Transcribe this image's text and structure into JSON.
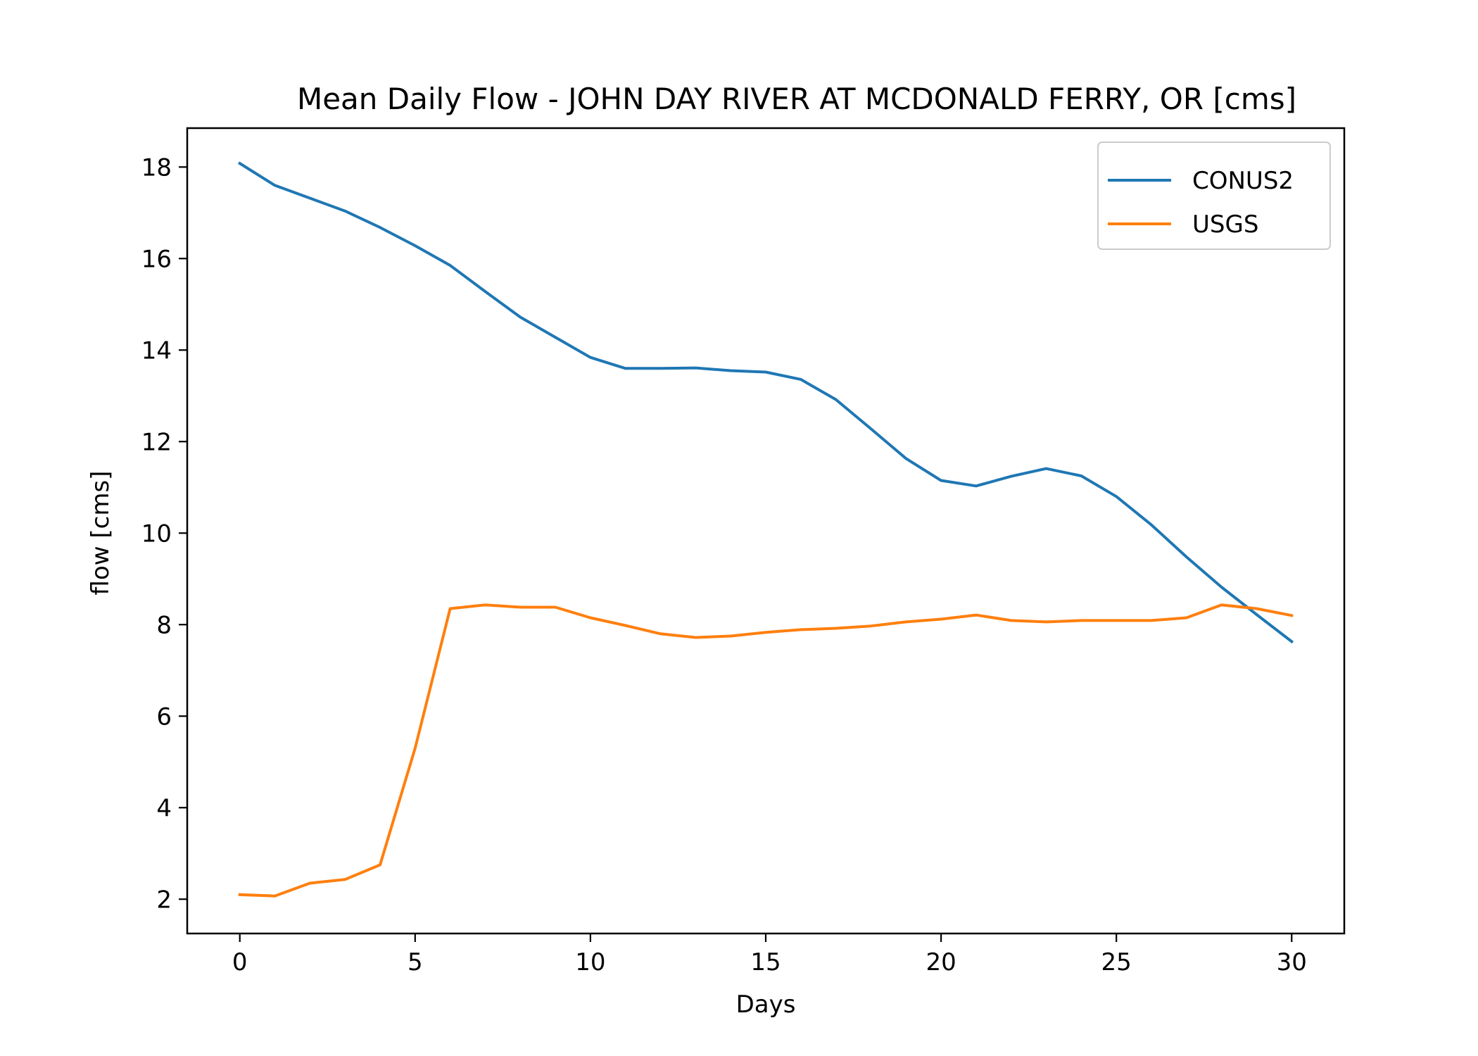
{
  "chart_data": {
    "type": "line",
    "title": "Mean Daily Flow - JOHN DAY RIVER AT MCDONALD FERRY, OR [cms]",
    "xlabel": "Days",
    "ylabel": "flow [cms]",
    "xlim": [
      -1.5,
      31.5
    ],
    "ylim": [
      1.25,
      18.85
    ],
    "xticks": [
      0,
      5,
      10,
      15,
      20,
      25,
      30
    ],
    "yticks": [
      2,
      4,
      6,
      8,
      10,
      12,
      14,
      16,
      18
    ],
    "grid": false,
    "legend_position": "top-right",
    "x": [
      0,
      1,
      2,
      3,
      4,
      5,
      6,
      7,
      8,
      9,
      10,
      11,
      12,
      13,
      14,
      15,
      16,
      17,
      18,
      19,
      20,
      21,
      22,
      23,
      24,
      25,
      26,
      27,
      28,
      29,
      30
    ],
    "series": [
      {
        "name": "CONUS2",
        "color": "#1f77b4",
        "values": [
          18.08,
          17.6,
          17.32,
          17.04,
          16.68,
          16.28,
          15.85,
          15.28,
          14.72,
          14.28,
          13.84,
          13.6,
          13.6,
          13.61,
          13.55,
          13.52,
          13.36,
          12.92,
          12.28,
          11.63,
          11.15,
          11.03,
          11.24,
          11.41,
          11.25,
          10.8,
          10.18,
          9.48,
          8.82,
          8.22,
          7.63
        ]
      },
      {
        "name": "USGS",
        "color": "#ff7f0e",
        "values": [
          2.1,
          2.07,
          2.35,
          2.43,
          2.75,
          5.3,
          8.35,
          8.43,
          8.38,
          8.38,
          8.15,
          7.98,
          7.8,
          7.72,
          7.75,
          7.83,
          7.89,
          7.92,
          7.97,
          8.06,
          8.12,
          8.21,
          8.09,
          8.06,
          8.09,
          8.09,
          8.09,
          8.15,
          8.43,
          8.35,
          8.2
        ]
      }
    ]
  }
}
